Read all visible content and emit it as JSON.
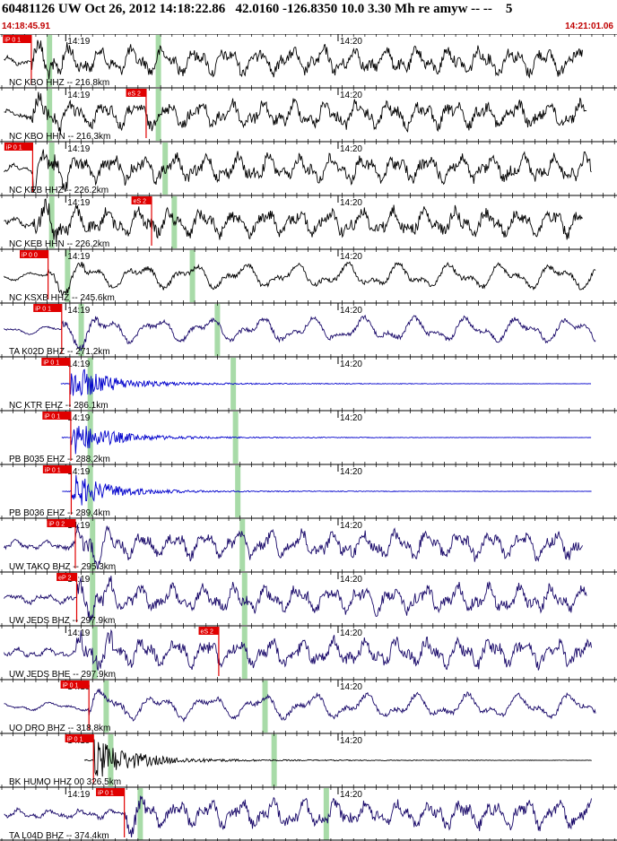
{
  "header": {
    "title": "60481126 UW Oct 26, 2012 14:18:22.86   42.0160 -126.8350 10.0 3.30 Mh re amyw -- --    5",
    "start_time": "14:18:45.91",
    "end_time": "14:21:01.06"
  },
  "time_axis": {
    "start": "14:18:45.91",
    "end": "14:21:01.06",
    "labels": [
      "14:19",
      "14:20"
    ],
    "label_times_s": [
      14.09,
      74.09
    ],
    "total_s": 135.15
  },
  "colors": {
    "black": "#000000",
    "navy": "#1a0a6a",
    "blue": "#0000cc",
    "pick": "#e00000",
    "window": "#a8dba8"
  },
  "traces": [
    {
      "label": "NC KBO HHZ -- 216.8km",
      "color": "black",
      "onset_s": 6.5,
      "style": "noisy",
      "amp": 1.0,
      "picks": [
        {
          "text": "iP 0 1",
          "t_s": 6.5
        }
      ],
      "windows": [
        {
          "t_s": 10.5
        },
        {
          "t_s": 34.5
        }
      ]
    },
    {
      "label": "NC KBO HHN -- 216.3km",
      "color": "black",
      "onset_s": 6.5,
      "style": "noisy",
      "amp": 1.0,
      "picks": [
        {
          "text": "eS 2",
          "t_s": 31.8
        }
      ],
      "windows": [
        {
          "t_s": 10.5
        },
        {
          "t_s": 34.5
        }
      ]
    },
    {
      "label": "NC KEB HHZ -- 226.2km",
      "color": "black",
      "onset_s": 6.8,
      "style": "noisy",
      "amp": 1.0,
      "picks": [
        {
          "text": "iP 0 1",
          "t_s": 6.8
        }
      ],
      "windows": [
        {
          "t_s": 11.0
        },
        {
          "t_s": 36.0
        }
      ]
    },
    {
      "label": "NC KEB HHN -- 226.2km",
      "color": "black",
      "onset_s": 6.8,
      "style": "noisy",
      "amp": 1.0,
      "picks": [
        {
          "text": "eS 2",
          "t_s": 33.0
        }
      ],
      "windows": [
        {
          "t_s": 11.0
        },
        {
          "t_s": 38.0
        }
      ]
    },
    {
      "label": "NC KSXB HHZ -- 245.6km",
      "color": "black",
      "onset_s": 10.2,
      "style": "smooth",
      "amp": 1.0,
      "picks": [
        {
          "text": "iP 0 0",
          "t_s": 10.2
        }
      ],
      "windows": [
        {
          "t_s": 14.5
        },
        {
          "t_s": 42.0
        }
      ]
    },
    {
      "label": "TA K02D BHZ -- 271.2km",
      "color": "navy",
      "onset_s": 13.2,
      "style": "smooth",
      "amp": 1.0,
      "picks": [
        {
          "text": "iP 0 1",
          "t_s": 13.2
        }
      ],
      "windows": [
        {
          "t_s": 17.5
        },
        {
          "t_s": 47.5
        }
      ]
    },
    {
      "label": "NC KTR EHZ -- 286.1km",
      "color": "blue",
      "onset_s": 15.0,
      "style": "burst",
      "amp": 1.0,
      "picks": [
        {
          "text": "iP 0 1",
          "t_s": 15.0
        }
      ],
      "windows": [
        {
          "t_s": 19.5
        },
        {
          "t_s": 51.0
        }
      ]
    },
    {
      "label": "PB B035 EHZ -- 288.2km",
      "color": "blue",
      "onset_s": 15.2,
      "style": "burst",
      "amp": 0.9,
      "picks": [
        {
          "text": "iP 0 1",
          "t_s": 15.2
        }
      ],
      "windows": [
        {
          "t_s": 19.5
        },
        {
          "t_s": 51.5
        }
      ]
    },
    {
      "label": "PB B036 EHZ -- 289.4km",
      "color": "blue",
      "onset_s": 15.3,
      "style": "burst",
      "amp": 0.9,
      "picks": [
        {
          "text": "iP 0 1",
          "t_s": 15.3
        }
      ],
      "windows": [
        {
          "t_s": 19.5
        },
        {
          "t_s": 52.0
        }
      ]
    },
    {
      "label": "UW TAKO BHZ -- 295.3km",
      "color": "navy",
      "onset_s": 16.2,
      "style": "noisy",
      "amp": 1.0,
      "picks": [
        {
          "text": "iP 0 2",
          "t_s": 16.2
        }
      ],
      "windows": [
        {
          "t_s": 20.0
        },
        {
          "t_s": 53.0
        }
      ]
    },
    {
      "label": "UW JEDS BHZ -- 297.9km",
      "color": "navy",
      "onset_s": 16.5,
      "style": "noisy",
      "amp": 1.0,
      "picks": [
        {
          "text": "eP 2",
          "t_s": 16.5
        }
      ],
      "windows": [
        {
          "t_s": 20.0
        },
        {
          "t_s": 53.5
        }
      ]
    },
    {
      "label": "UW JEDS BHE -- 297.9km",
      "color": "navy",
      "onset_s": 16.5,
      "style": "noisy",
      "amp": 1.0,
      "picks": [
        {
          "text": "eS 2",
          "t_s": 47.8
        }
      ],
      "windows": [
        {
          "t_s": 20.5
        },
        {
          "t_s": 53.5
        }
      ]
    },
    {
      "label": "UO DRO BHZ -- 318.8km",
      "color": "navy",
      "onset_s": 19.2,
      "style": "smooth",
      "amp": 1.0,
      "picks": [
        {
          "text": "iP 0 1",
          "t_s": 19.2
        }
      ],
      "windows": [
        {
          "t_s": 23.0
        },
        {
          "t_s": 58.0
        }
      ]
    },
    {
      "label": "BK HUMO HHZ 00 326.5km",
      "color": "black",
      "onset_s": 20.2,
      "style": "burst",
      "amp": 1.1,
      "picks": [
        {
          "text": "iP 0 1",
          "t_s": 20.2
        }
      ],
      "windows": [
        {
          "t_s": 24.0
        },
        {
          "t_s": 60.0
        }
      ]
    },
    {
      "label": "TA L04D BHZ -- 374.4km",
      "color": "navy",
      "onset_s": 27.0,
      "style": "noisy",
      "amp": 1.0,
      "picks": [
        {
          "text": "iP 0 1",
          "t_s": 27.0
        }
      ],
      "windows": [
        {
          "t_s": 30.5
        },
        {
          "t_s": 71.5
        }
      ]
    }
  ]
}
